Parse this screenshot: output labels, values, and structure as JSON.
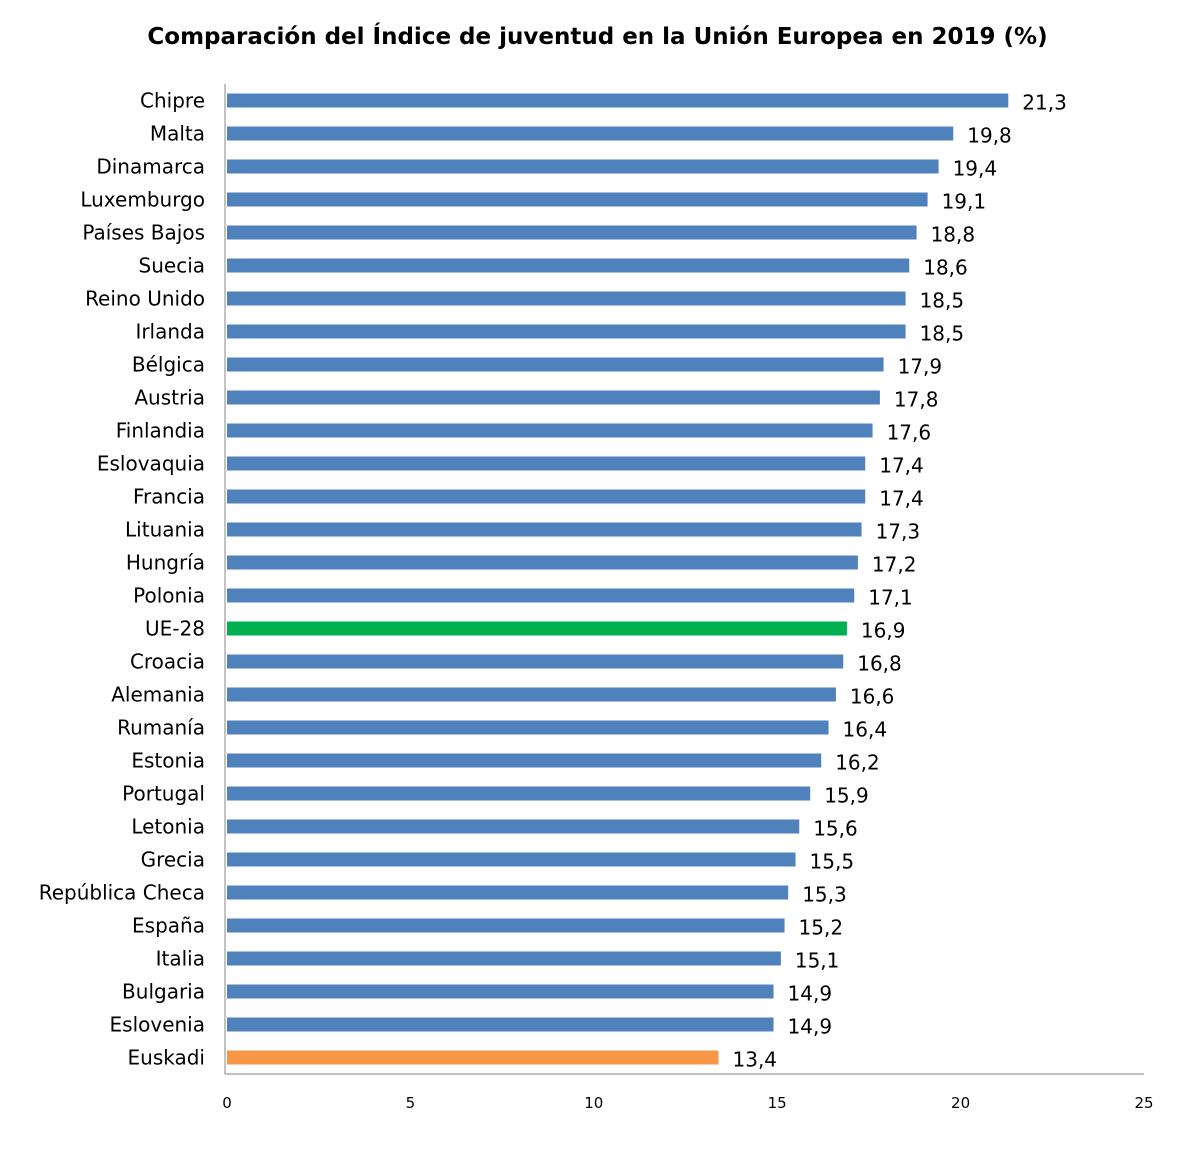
{
  "chart_data": {
    "type": "bar",
    "orientation": "horizontal",
    "title": "Comparación del Índice de juventud en la Unión Europea en 2019 (%)",
    "xlabel": "",
    "ylabel": "",
    "xlim": [
      0,
      25
    ],
    "xticks": [
      "0",
      "5",
      "10",
      "15",
      "20",
      "25"
    ],
    "grid": false,
    "categories": [
      "Chipre",
      "Malta",
      "Dinamarca",
      "Luxemburgo",
      "Países Bajos",
      "Suecia",
      "Reino Unido",
      "Irlanda",
      "Bélgica",
      "Austria",
      "Finlandia",
      "Eslovaquia",
      "Francia",
      "Lituania",
      "Hungría",
      "Polonia",
      "UE-28",
      "Croacia",
      "Alemania",
      "Rumanía",
      "Estonia",
      "Portugal",
      "Letonia",
      "Grecia",
      "República Checa",
      "España",
      "Italia",
      "Bulgaria",
      "Eslovenia",
      "Euskadi"
    ],
    "values": [
      21.3,
      19.8,
      19.4,
      19.1,
      18.8,
      18.6,
      18.5,
      18.5,
      17.9,
      17.8,
      17.6,
      17.4,
      17.4,
      17.3,
      17.2,
      17.1,
      16.9,
      16.8,
      16.6,
      16.4,
      16.2,
      15.9,
      15.6,
      15.5,
      15.3,
      15.2,
      15.1,
      14.9,
      14.9,
      13.4
    ],
    "data_labels": [
      "21,3",
      "19,8",
      "19,4",
      "19,1",
      "18,8",
      "18,6",
      "18,5",
      "18,5",
      "17,9",
      "17,8",
      "17,6",
      "17,4",
      "17,4",
      "17,3",
      "17,2",
      "17,1",
      "16,9",
      "16,8",
      "16,6",
      "16,4",
      "16,2",
      "15,9",
      "15,6",
      "15,5",
      "15,3",
      "15,2",
      "15,1",
      "14,9",
      "14,9",
      "13,4"
    ],
    "colors": {
      "default": "#4f81bd",
      "UE-28": "#00b050",
      "Euskadi": "#f79646",
      "axis": "#868686"
    }
  }
}
